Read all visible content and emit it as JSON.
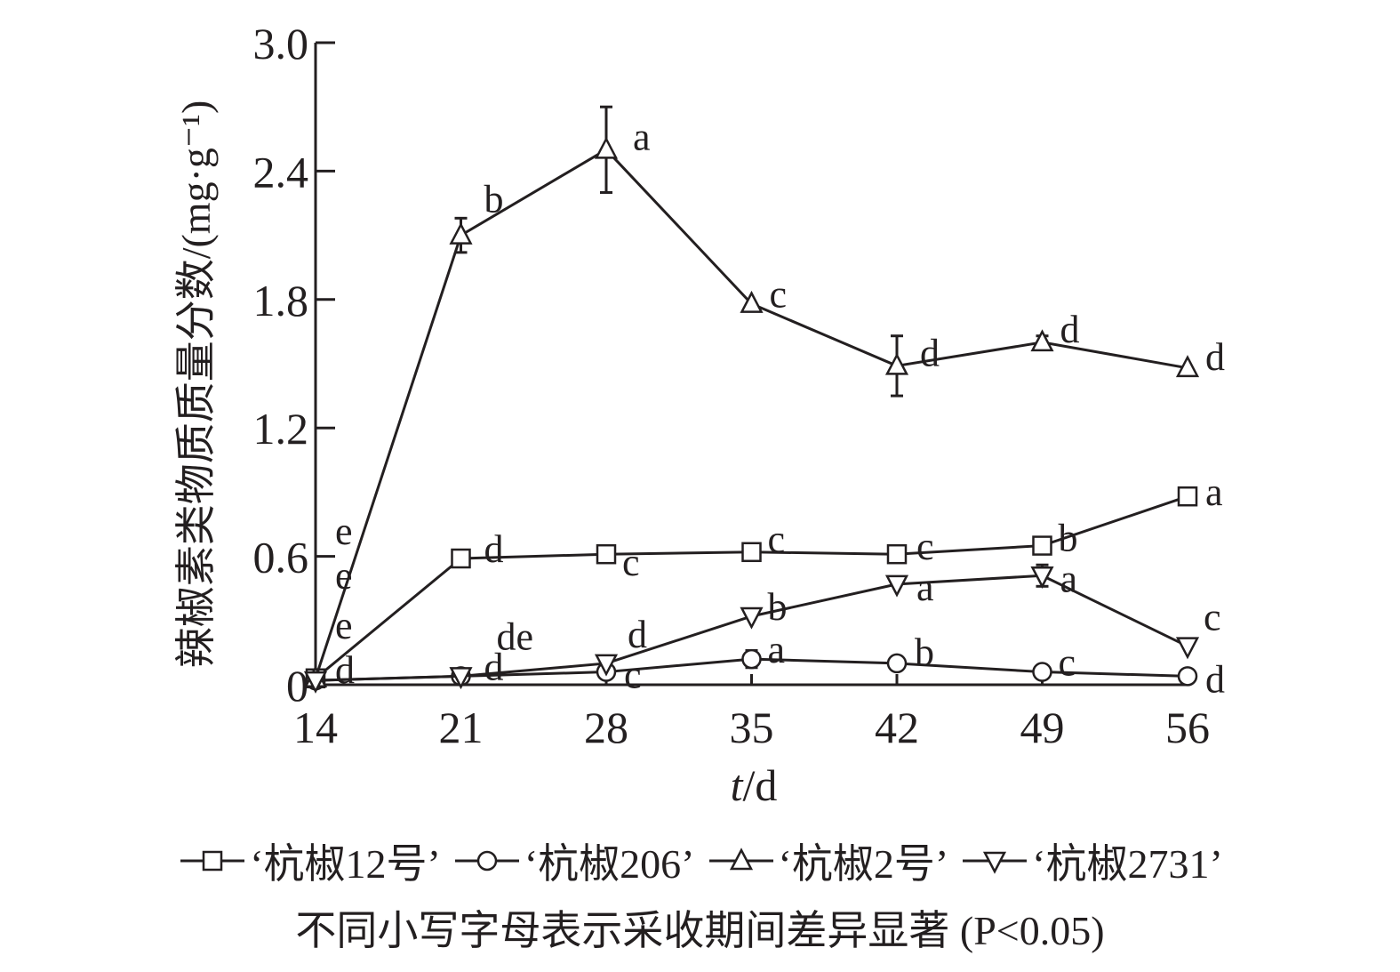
{
  "chart_data": {
    "type": "line",
    "xlabel": "t/d",
    "ylabel": "辣椒素类物质质量分数/(mg·g⁻¹)",
    "x": [
      14,
      21,
      28,
      35,
      42,
      49,
      56
    ],
    "xlim": [
      14,
      56
    ],
    "ylim": [
      0,
      3.0
    ],
    "yticks": [
      "0",
      "0.6",
      "1.2",
      "1.8",
      "2.4",
      "3.0"
    ],
    "xticks": [
      "14",
      "21",
      "28",
      "35",
      "42",
      "49",
      "56"
    ],
    "series": [
      {
        "name": "‘杭椒12号’",
        "marker": "square",
        "values": [
          0.03,
          0.59,
          0.61,
          0.62,
          0.61,
          0.65,
          0.88
        ],
        "errors": [
          0,
          0,
          0,
          0,
          0,
          0,
          0
        ],
        "labels": [
          "e",
          "d",
          "c",
          "c",
          "c",
          "b",
          "a"
        ]
      },
      {
        "name": "‘杭椒206’",
        "marker": "circle",
        "values": [
          0.02,
          0.04,
          0.06,
          0.12,
          0.1,
          0.06,
          0.04
        ],
        "errors": [
          0,
          0,
          0.02,
          0.04,
          0.03,
          0.01,
          0
        ],
        "labels": [
          "d",
          "d",
          "c",
          "a",
          "b",
          "c",
          "d"
        ]
      },
      {
        "name": "‘杭椒2号’",
        "marker": "triangle-up",
        "values": [
          0.03,
          2.1,
          2.5,
          1.78,
          1.49,
          1.6,
          1.48
        ],
        "errors": [
          0,
          0.08,
          0.2,
          0,
          0.14,
          0.03,
          0
        ],
        "labels": [
          "e",
          "b",
          "a",
          "c",
          "d",
          "d",
          "d"
        ]
      },
      {
        "name": "‘杭椒2731’",
        "marker": "triangle-down",
        "values": [
          0.02,
          0.04,
          0.1,
          0.32,
          0.47,
          0.51,
          0.18
        ],
        "errors": [
          0,
          0,
          0,
          0,
          0,
          0.05,
          0
        ],
        "labels": [
          "e",
          "de",
          "d",
          "b",
          "a",
          "a",
          "c"
        ]
      }
    ],
    "note": "不同小写字母表示采收期间差异显著 (P<0.05)",
    "legend_position": "bottom",
    "grid": false
  }
}
